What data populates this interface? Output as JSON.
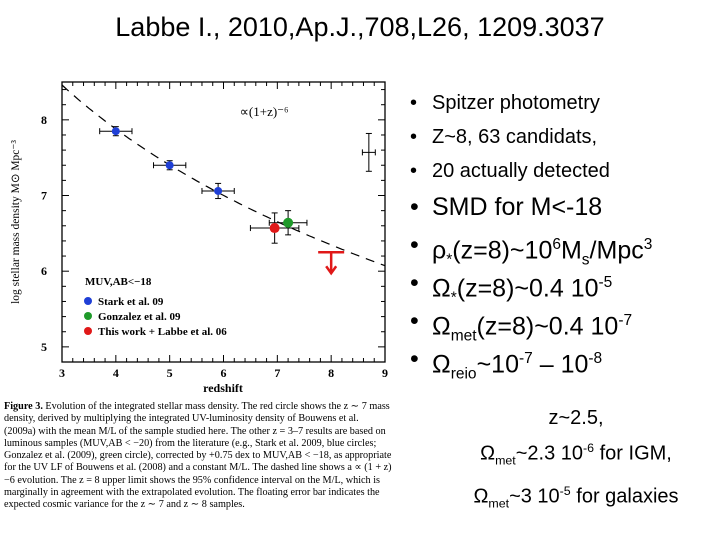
{
  "slide": {
    "title": "Labbe I., 2010,Ap.J.,708,L26, 1209.3037",
    "bullets_small": [
      "Spitzer photometry",
      "Z~8, 63 candidats,",
      "20 actually detected"
    ],
    "bullet_smd": "SMD for M<-18",
    "bullet_rho": {
      "sym": "ρ",
      "sub": "*",
      "text1": "(z=8)~10",
      "exp": "6",
      "text2": "M",
      "sub2": "s",
      "text3": "/Mpc",
      "exp2": "3"
    },
    "bullet_omega_star": {
      "sym": "Ω",
      "sub": "*",
      "text1": "(z=8)~0.4 10",
      "exp": "-5"
    },
    "bullet_omega_met": {
      "sym": "Ω",
      "sub": "met",
      "text1": "(z=8)~0.4 10",
      "exp": "-7"
    },
    "bullet_omega_reio": {
      "sym": "Ω",
      "sub": "reio",
      "text1": "~10",
      "exp": "-7",
      "text2": " – 10",
      "exp2": "-8"
    },
    "z_block": {
      "line1": "z~2.5,",
      "line2": {
        "sym": "Ω",
        "sub": "met",
        "text1": "~2.3 10",
        "exp": "-6",
        "text2": " for IGM,"
      },
      "line3": {
        "sym": "Ω",
        "sub": "met",
        "text1": "~3 10",
        "exp": "-5",
        "text2": " for galaxies"
      }
    },
    "caption": {
      "label": "Figure 3.",
      "text": "Evolution of the integrated stellar mass density. The red circle shows the z ∼ 7 mass density, derived by multiplying the integrated UV-luminosity density of Bouwens et al. (2009a) with the mean M/L of the sample studied here. The other z = 3–7 results are based on luminous samples (MUV,AB < −20) from the literature (e.g., Stark et al. 2009, blue circles; Gonzalez et al. (2009), green circle), corrected by +0.75 dex to MUV,AB < −18, as appropriate for the UV LF of Bouwens et al. (2008) and a constant M/L. The dashed line shows a ∝ (1 + z)−6 evolution. The z = 8 upper limit shows the 95% confidence interval on the M/L, which is marginally in agreement with the extrapolated evolution. The floating error bar indicates the expected cosmic variance for the z ∼ 7 and z ∼ 8 samples."
    }
  },
  "chart_data": {
    "type": "scatter",
    "xlabel": "redshift",
    "ylabel": "log stellar mass density M⊙ Mpc⁻³",
    "xlim": [
      3,
      9
    ],
    "ylim": [
      4.8,
      8.5
    ],
    "xticks": [
      3,
      4,
      5,
      6,
      7,
      8,
      9
    ],
    "yticks": [
      5,
      6,
      7,
      8
    ],
    "model_label": "∝(1+z)⁻⁶",
    "model_curve": {
      "form": "(1+z)^-6",
      "anchor_z": 3,
      "anchor_logrho": 8.46
    },
    "magnitude_label": "MUV,AB<−18",
    "legend": [
      {
        "label": "Stark et al. 09",
        "color": "#1f3fd6"
      },
      {
        "label": "Gonzalez et al. 09",
        "color": "#1f9a2a"
      },
      {
        "label": "This work + Labbe et al. 06",
        "color": "#e01818"
      }
    ],
    "series": [
      {
        "name": "Stark et al. 09",
        "color": "#1f3fd6",
        "points": [
          {
            "x": 4.0,
            "y": 7.85,
            "xerr": 0.3,
            "yerr": 0.06
          },
          {
            "x": 5.0,
            "y": 7.4,
            "xerr": 0.3,
            "yerr": 0.06
          },
          {
            "x": 5.9,
            "y": 7.06,
            "xerr": 0.3,
            "yerr": 0.1
          }
        ]
      },
      {
        "name": "Gonzalez et al. 09",
        "color": "#1f9a2a",
        "points": [
          {
            "x": 7.2,
            "y": 6.64,
            "xerr": 0.35,
            "yerr": 0.16
          }
        ]
      },
      {
        "name": "This work + Labbe et al. 06",
        "color": "#e01818",
        "points": [
          {
            "x": 6.95,
            "y": 6.57,
            "xerr": 0.45,
            "yerr": 0.2
          }
        ]
      }
    ],
    "upper_limit": {
      "x": 8.0,
      "y": 6.25,
      "color": "#e01818"
    },
    "cosmic_variance_bar": {
      "x": 8.7,
      "y": 7.57,
      "xerr": 0.12,
      "yerr": 0.25
    }
  }
}
